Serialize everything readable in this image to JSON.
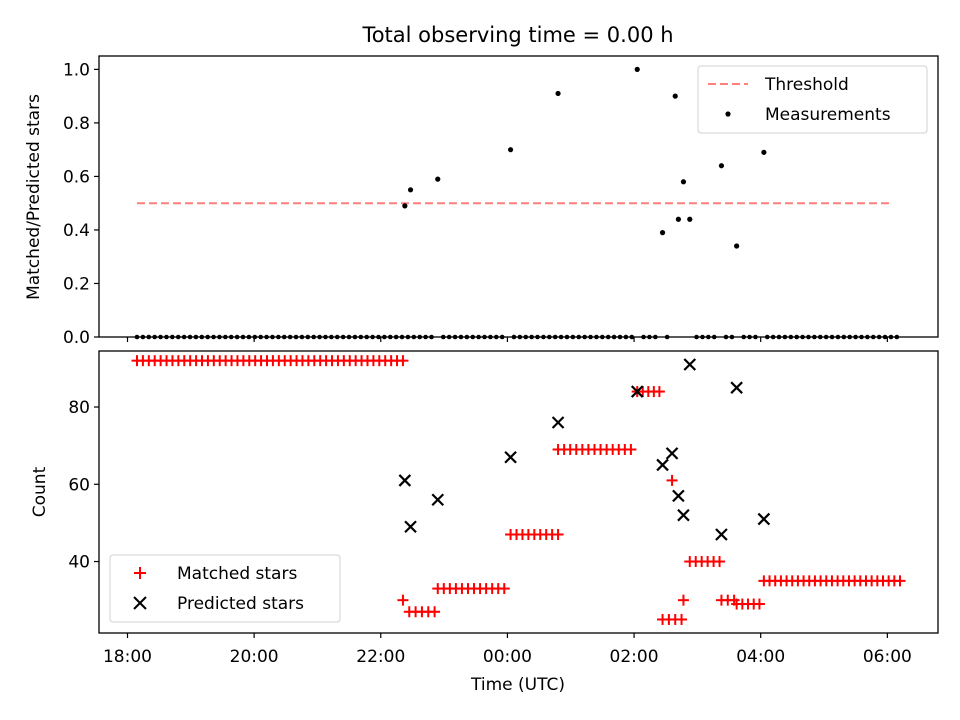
{
  "title": "Total observing time = 0.00 h",
  "colors": {
    "threshold": "#ff7f7f",
    "matched": "#ff0000",
    "predicted": "#000000",
    "measurement": "#000000"
  },
  "chart_data": [
    {
      "type": "scatter",
      "ylabel": "Matched/Predicted stars",
      "ylim": [
        0,
        1.05
      ],
      "yticks": [
        0.0,
        0.2,
        0.4,
        0.6,
        0.8,
        1.0
      ],
      "ytick_labels": [
        "0.0",
        "0.2",
        "0.4",
        "0.6",
        "0.8",
        "1.0"
      ],
      "legend_position": "top-right",
      "threshold": {
        "name": "Threshold",
        "value": 0.5,
        "x_start": 18.15,
        "x_end": 30.05
      },
      "zero_run": {
        "x_start": 18.15,
        "x_end": 30.15,
        "count": 130
      },
      "measurements": {
        "name": "Measurements",
        "points": [
          [
            22.38,
            0.49
          ],
          [
            22.47,
            0.55
          ],
          [
            22.9,
            0.59
          ],
          [
            24.05,
            0.7
          ],
          [
            24.8,
            0.91
          ],
          [
            26.05,
            1.0
          ],
          [
            26.65,
            0.9
          ],
          [
            26.45,
            0.39
          ],
          [
            26.7,
            0.44
          ],
          [
            26.78,
            0.58
          ],
          [
            26.88,
            0.44
          ],
          [
            27.38,
            0.64
          ],
          [
            27.62,
            0.34
          ],
          [
            28.05,
            0.69
          ]
        ]
      }
    },
    {
      "type": "scatter",
      "xlabel": "Time (UTC)",
      "ylabel": "Count",
      "ylim": [
        21.5,
        94.5
      ],
      "yticks": [
        40,
        60,
        80
      ],
      "ytick_labels": [
        "40",
        "60",
        "80"
      ],
      "xlim": [
        17.55,
        30.8
      ],
      "xticks": [
        18,
        20,
        22,
        24,
        26,
        28,
        30
      ],
      "xtick_labels": [
        "18:00",
        "20:00",
        "22:00",
        "00:00",
        "02:00",
        "04:00",
        "06:00"
      ],
      "legend_position": "lower-left",
      "matched_runs": [
        {
          "x_start": 18.15,
          "x_end": 22.35,
          "y": 92,
          "count": 46
        },
        {
          "x_start": 22.35,
          "x_end": 22.35,
          "y": 30,
          "count": 1
        },
        {
          "x_start": 22.45,
          "x_end": 22.85,
          "y": 27,
          "count": 5
        },
        {
          "x_start": 22.9,
          "x_end": 23.95,
          "y": 33,
          "count": 12
        },
        {
          "x_start": 24.05,
          "x_end": 24.8,
          "y": 47,
          "count": 9
        },
        {
          "x_start": 24.8,
          "x_end": 25.95,
          "y": 69,
          "count": 13
        },
        {
          "x_start": 26.05,
          "x_end": 26.4,
          "y": 84,
          "count": 5
        },
        {
          "x_start": 26.45,
          "x_end": 26.75,
          "y": 25,
          "count": 4
        },
        {
          "x_start": 26.6,
          "x_end": 26.6,
          "y": 61,
          "count": 1
        },
        {
          "x_start": 26.78,
          "x_end": 26.78,
          "y": 30,
          "count": 1
        },
        {
          "x_start": 26.88,
          "x_end": 27.35,
          "y": 40,
          "count": 6
        },
        {
          "x_start": 27.38,
          "x_end": 27.58,
          "y": 30,
          "count": 3
        },
        {
          "x_start": 27.62,
          "x_end": 27.98,
          "y": 29,
          "count": 5
        },
        {
          "x_start": 28.05,
          "x_end": 30.2,
          "y": 35,
          "count": 25
        }
      ],
      "series": [
        {
          "name": "Matched stars"
        },
        {
          "name": "Predicted stars",
          "points": [
            [
              22.38,
              61
            ],
            [
              22.47,
              49
            ],
            [
              22.9,
              56
            ],
            [
              24.05,
              67
            ],
            [
              24.8,
              76
            ],
            [
              26.05,
              84
            ],
            [
              26.45,
              65
            ],
            [
              26.6,
              68
            ],
            [
              26.7,
              57
            ],
            [
              26.78,
              52
            ],
            [
              26.88,
              91
            ],
            [
              27.38,
              47
            ],
            [
              27.62,
              85
            ],
            [
              28.05,
              51
            ]
          ]
        }
      ]
    }
  ]
}
